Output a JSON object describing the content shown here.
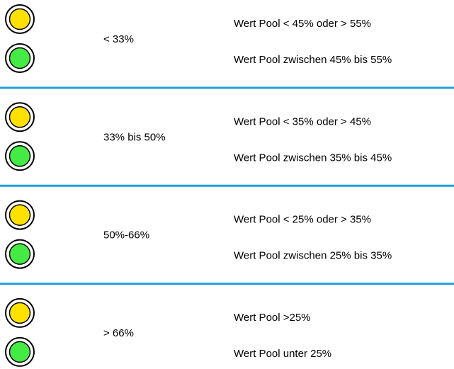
{
  "rows": [
    {
      "range": "< 33%",
      "yellow": "Wert Pool < 45% oder > 55%",
      "green": "Wert Pool zwischen 45% bis 55%"
    },
    {
      "range": "33% bis 50%",
      "yellow": "Wert Pool < 35% oder > 45%",
      "green": "Wert Pool zwischen 35% bis 45%"
    },
    {
      "range": "50%-66%",
      "yellow": "Wert Pool < 25% oder > 35%",
      "green": "Wert Pool zwischen 25% bis 35%"
    },
    {
      "range": "> 66%",
      "yellow": "Wert Pool >25%",
      "green": "Wert Pool unter 25%"
    }
  ]
}
